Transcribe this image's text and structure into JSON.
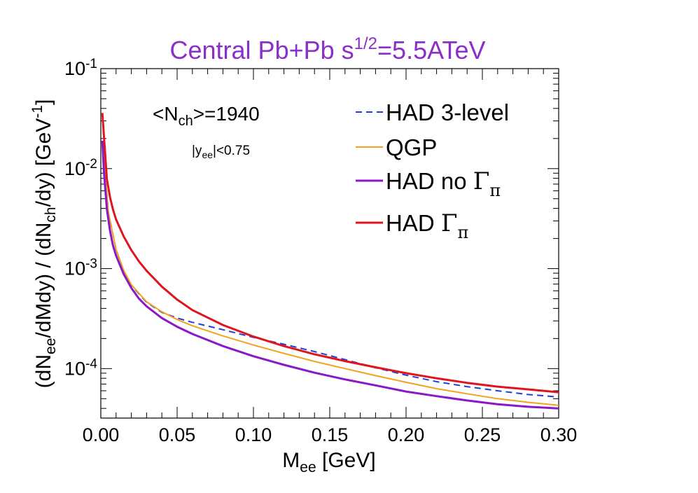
{
  "chart_data": {
    "type": "line",
    "title": {
      "prefix": "Central Pb+Pb  s",
      "exponent": "1/2",
      "suffix": "=5.5ATeV"
    },
    "xlabel": {
      "base": "M",
      "sub": "ee",
      "unit": " [GeV]"
    },
    "ylabel": {
      "p1": "(dN",
      "p1_sub": "ee",
      "p2": "/dMdy) / (dN",
      "p2_sub": "ch",
      "p3": "/dy)  [GeV",
      "p3_sup": "-1",
      "p4": "]"
    },
    "x_scale": "linear",
    "y_scale": "log",
    "xlim": [
      0.0,
      0.3
    ],
    "ylim": [
      3.2e-05,
      0.1
    ],
    "x_ticks": [
      "0.00",
      "0.05",
      "0.10",
      "0.15",
      "0.20",
      "0.25",
      "0.30"
    ],
    "x_tick_values": [
      0.0,
      0.05,
      0.1,
      0.15,
      0.2,
      0.25,
      0.3
    ],
    "y_ticks": [
      {
        "value": 0.1,
        "base": "10",
        "exp": "-1"
      },
      {
        "value": 0.01,
        "base": "10",
        "exp": "-2"
      },
      {
        "value": 0.001,
        "base": "10",
        "exp": "-3"
      },
      {
        "value": 0.0001,
        "base": "10",
        "exp": "-4"
      }
    ],
    "annotations": {
      "nch_prefix": "<N",
      "nch_sub": "ch",
      "nch_suffix": ">=1940",
      "y_prefix": "|y",
      "y_sub": "ee",
      "y_suffix": "|<0.75"
    },
    "series": [
      {
        "name": "HAD 3-level",
        "legend_base": "HAD 3-level",
        "legend_gamma": "",
        "legend_gamma_sub": "",
        "color": "#1f3fd6",
        "dash": "9,6",
        "width": 2,
        "x": [
          0.002,
          0.005,
          0.01,
          0.015,
          0.02,
          0.03,
          0.04,
          0.05,
          0.06,
          0.08,
          0.1,
          0.12,
          0.14,
          0.16,
          0.18,
          0.2,
          0.22,
          0.24,
          0.26,
          0.28,
          0.3
        ],
        "y": [
          0.0125,
          0.0036,
          0.00155,
          0.00095,
          0.00068,
          0.00046,
          0.000365,
          0.00032,
          0.00029,
          0.000245,
          0.000205,
          0.000175,
          0.000148,
          0.000123,
          0.000102,
          8.6e-05,
          7.4e-05,
          6.6e-05,
          6e-05,
          5.5e-05,
          5.2e-05
        ]
      },
      {
        "name": "QGP",
        "legend_base": "QGP",
        "legend_gamma": "",
        "legend_gamma_sub": "",
        "color": "#f2a21b",
        "dash": "",
        "width": 2,
        "x": [
          0.002,
          0.005,
          0.01,
          0.015,
          0.02,
          0.03,
          0.04,
          0.05,
          0.06,
          0.08,
          0.1,
          0.12,
          0.14,
          0.16,
          0.18,
          0.2,
          0.22,
          0.24,
          0.26,
          0.28,
          0.3
        ],
        "y": [
          0.0125,
          0.0036,
          0.00155,
          0.00096,
          0.00069,
          0.000465,
          0.00037,
          0.00031,
          0.000268,
          0.000212,
          0.000172,
          0.000142,
          0.000118,
          0.0001,
          8.5e-05,
          7.3e-05,
          6.3e-05,
          5.6e-05,
          5e-05,
          4.6e-05,
          4.3e-05
        ]
      },
      {
        "name": "HAD no Γπ",
        "legend_base": "HAD no ",
        "legend_gamma": "Γ",
        "legend_gamma_sub": "π",
        "color": "#8a18c9",
        "dash": "",
        "width": 3,
        "x": [
          0.001,
          0.002,
          0.004,
          0.006,
          0.008,
          0.01,
          0.015,
          0.02,
          0.025,
          0.03,
          0.04,
          0.05,
          0.06,
          0.08,
          0.1,
          0.12,
          0.14,
          0.16,
          0.18,
          0.2,
          0.22,
          0.24,
          0.26,
          0.28,
          0.3
        ],
        "y": [
          0.019,
          0.0095,
          0.0039,
          0.0024,
          0.0017,
          0.00135,
          0.00088,
          0.00064,
          0.0005,
          0.00042,
          0.00032,
          0.000262,
          0.000222,
          0.000168,
          0.000133,
          0.000109,
          9.1e-05,
          7.8e-05,
          6.8e-05,
          5.9e-05,
          5.3e-05,
          4.8e-05,
          4.4e-05,
          4.15e-05,
          4e-05
        ]
      },
      {
        "name": "HAD Γπ",
        "legend_base": "HAD ",
        "legend_gamma": "Γ",
        "legend_gamma_sub": "π",
        "color": "#e0141e",
        "dash": "",
        "width": 3,
        "x": [
          0.001,
          0.002,
          0.004,
          0.006,
          0.008,
          0.01,
          0.015,
          0.02,
          0.025,
          0.03,
          0.04,
          0.05,
          0.06,
          0.08,
          0.1,
          0.12,
          0.14,
          0.16,
          0.18,
          0.2,
          0.22,
          0.24,
          0.26,
          0.28,
          0.3
        ],
        "y": [
          0.036,
          0.0215,
          0.0078,
          0.0052,
          0.0039,
          0.0031,
          0.0021,
          0.00153,
          0.00118,
          0.00095,
          0.00066,
          0.00049,
          0.000385,
          0.000273,
          0.000209,
          0.000168,
          0.000139,
          0.000119,
          0.000103,
          9e-05,
          8e-05,
          7.2e-05,
          6.6e-05,
          6.2e-05,
          5.8e-05
        ]
      }
    ],
    "legend_order": [
      0,
      1,
      2,
      3
    ],
    "legend_position": "top-right"
  }
}
